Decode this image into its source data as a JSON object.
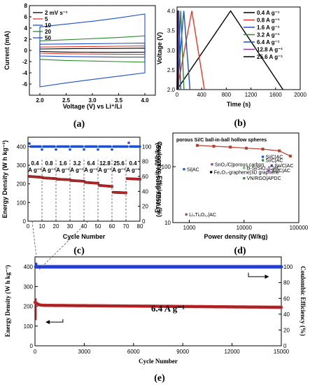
{
  "panels": {
    "a": "(a)",
    "b": "(b)",
    "c": "(c)",
    "d": "(d)",
    "e": "(e)"
  },
  "chart_data": [
    {
      "id": "a",
      "type": "line",
      "xlabel": "Voltage (V) vs Li⁺/Li",
      "ylabel": "Current (mA)",
      "xlim": [
        1.8,
        4.2
      ],
      "ylim": [
        -8,
        8
      ],
      "xticks": [
        "2.0",
        "2.5",
        "3.0",
        "3.5",
        "4.0"
      ],
      "yticks": [
        "-6",
        "-4",
        "-2",
        "0",
        "2",
        "4",
        "6",
        "8"
      ],
      "legend_position": "top-left",
      "series": [
        {
          "name": "2 mV s⁻¹",
          "color": "#000000",
          "upper": [
            0.25,
            0.3,
            0.33,
            0.35,
            0.4
          ],
          "lower": [
            -0.2,
            -0.3,
            -0.33,
            -0.35,
            -0.3
          ]
        },
        {
          "name": "5",
          "color": "#e8382b",
          "upper": [
            0.6,
            0.65,
            0.7,
            0.75,
            0.8
          ],
          "lower": [
            -0.5,
            -0.6,
            -0.65,
            -0.7,
            -0.7
          ]
        },
        {
          "name": "10",
          "color": "#1f4fd1",
          "upper": [
            1.1,
            1.15,
            1.2,
            1.25,
            1.3
          ],
          "lower": [
            -1.0,
            -1.1,
            -1.15,
            -1.2,
            -1.2
          ]
        },
        {
          "name": "20",
          "color": "#2a8a2a",
          "upper": [
            1.7,
            1.9,
            2.1,
            2.3,
            2.6
          ],
          "lower": [
            -1.6,
            -1.8,
            -1.9,
            -2.0,
            -2.1
          ]
        },
        {
          "name": "50",
          "color": "#1f4fd1",
          "upper": [
            4.2,
            4.7,
            5.2,
            5.8,
            6.5
          ],
          "lower": [
            -6.5,
            -5.8,
            -5.2,
            -4.6,
            -4.0
          ]
        }
      ]
    },
    {
      "id": "b",
      "type": "line",
      "xlabel": "Time (s)",
      "ylabel": "Voltage (V)",
      "xlim": [
        0,
        2000
      ],
      "ylim": [
        2.0,
        4.1
      ],
      "xticks": [
        "0",
        "400",
        "800",
        "1200",
        "1600",
        "2000"
      ],
      "yticks": [
        "2.0",
        "2.5",
        "3.0",
        "3.5",
        "4.0"
      ],
      "legend_position": "right",
      "series": [
        {
          "name": "0.4 A g⁻¹",
          "color": "#000000",
          "t_charge": 870,
          "t_end": 1720
        },
        {
          "name": "0.8 A g⁻¹",
          "color": "#e8382b",
          "t_charge": 240,
          "t_end": 445
        },
        {
          "name": "1.6 A g⁻¹",
          "color": "#1f4fd1",
          "t_charge": 110,
          "t_end": 210
        },
        {
          "name": "3.2 A g⁻¹",
          "color": "#2a8a2a",
          "t_charge": 60,
          "t_end": 112
        },
        {
          "name": "6.4 A g⁻¹",
          "color": "#1f4fd1",
          "t_charge": 30,
          "t_end": 58
        },
        {
          "name": "12.8 A g⁻¹",
          "color": "#8a3aa8",
          "t_charge": 15,
          "t_end": 28
        },
        {
          "name": "25.6 A g⁻¹",
          "color": "#000000",
          "t_charge": 7,
          "t_end": 13
        }
      ]
    },
    {
      "id": "c",
      "type": "scatter",
      "xlabel": "Cycle Number",
      "ylabel": "Energy Density (W h kg⁻¹)",
      "y2label": "Coulombic Efficiency (%)",
      "xlim": [
        0,
        80
      ],
      "ylim": [
        0,
        450
      ],
      "y2lim": [
        0,
        112.5
      ],
      "xticks": [
        "0",
        "10",
        "20",
        "30",
        "40",
        "50",
        "60",
        "70",
        "80"
      ],
      "yticks": [
        "0",
        "100",
        "200",
        "300",
        "400"
      ],
      "y2ticks": [
        "0",
        "20",
        "40",
        "60",
        "80",
        "100"
      ],
      "rate_labels": [
        "0.4 A g⁻¹",
        "0.8 A g⁻¹",
        "1.6 A g⁻¹",
        "3.2 A g⁻¹",
        "6.4 A g⁻¹",
        "12.8 A g⁻¹",
        "25.6 A g⁻¹",
        "0.4 A g⁻¹"
      ],
      "energy_steps": [
        {
          "from": 1,
          "to": 10,
          "start": 240,
          "end": 235
        },
        {
          "from": 11,
          "to": 20,
          "start": 232,
          "end": 228
        },
        {
          "from": 21,
          "to": 30,
          "start": 225,
          "end": 222
        },
        {
          "from": 31,
          "to": 40,
          "start": 218,
          "end": 214
        },
        {
          "from": 41,
          "to": 50,
          "start": 208,
          "end": 203
        },
        {
          "from": 51,
          "to": 60,
          "start": 192,
          "end": 186
        },
        {
          "from": 61,
          "to": 70,
          "start": 155,
          "end": 152
        },
        {
          "from": 71,
          "to": 80,
          "start": 228,
          "end": 225
        }
      ],
      "ce_value": 100,
      "ce_outliers": [
        [
          1,
          104
        ],
        [
          10,
          96
        ],
        [
          20,
          96
        ],
        [
          30,
          96
        ],
        [
          40,
          96
        ],
        [
          50,
          96
        ],
        [
          60,
          96
        ],
        [
          72,
          105
        ]
      ]
    },
    {
      "id": "d",
      "type": "scatter",
      "title": "porous Si/C ball-in-ball hollow spheres",
      "xlabel": "Power density (W/kg)",
      "ylabel": "Energy density (Wh/kg)",
      "xscale": "log",
      "yscale": "log",
      "xlim": [
        500,
        100000
      ],
      "ylim": [
        10,
        400
      ],
      "xticks": [
        "1000",
        "10000",
        "100000"
      ],
      "yticks": [
        "10",
        "100"
      ],
      "main_series": {
        "color": "#b5412f",
        "points": [
          [
            1400,
            240
          ],
          [
            2800,
            232
          ],
          [
            5600,
            224
          ],
          [
            11000,
            214
          ],
          [
            22000,
            206
          ],
          [
            44000,
            192
          ],
          [
            70000,
            155
          ]
        ]
      },
      "references": [
        {
          "label": "Si/C|AC",
          "color": "#1f4fd1",
          "x": 22000,
          "y": 150
        },
        {
          "label": "Si/C|AC",
          "color": "#2a8a2a",
          "x": 22000,
          "y": 130
        },
        {
          "label": "SnO₂/C|porous carbon",
          "color": "#8a3aa8",
          "x": 2600,
          "y": 110
        },
        {
          "label": "Si|AC",
          "color": "#1f4fd1",
          "x": 800,
          "y": 90
        },
        {
          "label": "B-Si/SiO₂/C|AC",
          "color": "#55c955",
          "x": 10000,
          "y": 95
        },
        {
          "label": "Sn/C|AC",
          "color": "#1f4fd1",
          "x": 32000,
          "y": 105
        },
        {
          "label": "Fe₂O₃-graphene|3D graphene",
          "color": "#000000",
          "x": 2500,
          "y": 80
        },
        {
          "label": "Sn/C|AC",
          "color": "#8a3aa8",
          "x": 28000,
          "y": 85
        },
        {
          "label": "VN/RGO|APDC",
          "color": "#2a8a2a",
          "x": 10000,
          "y": 62
        },
        {
          "label": "Li₄Ti₅O₁₂|AC",
          "color": "#b5412f",
          "x": 880,
          "y": 14
        }
      ]
    },
    {
      "id": "e",
      "type": "scatter",
      "annotation": "6.4 A g⁻¹",
      "xlabel": "Cycle Number",
      "ylabel": "Energy Density (W h kg⁻¹)",
      "y2label": "Coulombic Efficiency (%)",
      "xlim": [
        0,
        15000
      ],
      "ylim": [
        0,
        450
      ],
      "y2lim": [
        0,
        112.5
      ],
      "xticks": [
        "0",
        "3000",
        "6000",
        "9000",
        "12000",
        "15000"
      ],
      "yticks": [
        "0",
        "100",
        "200",
        "300",
        "400"
      ],
      "y2ticks": [
        "0",
        "20",
        "40",
        "60",
        "80",
        "100"
      ],
      "energy": {
        "start": 220,
        "plateau": 205,
        "end": 195
      },
      "ce_value": 100
    }
  ]
}
